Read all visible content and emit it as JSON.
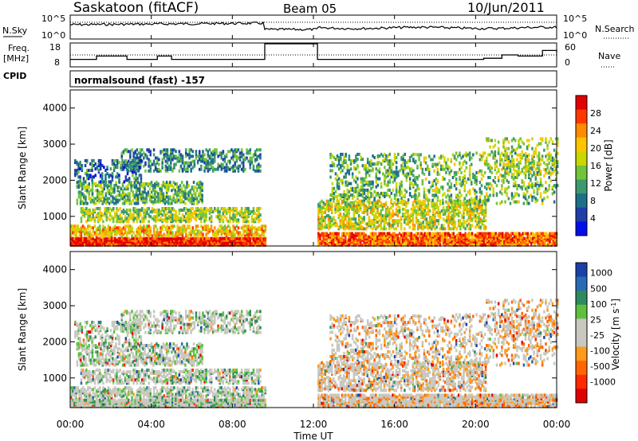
{
  "header": {
    "station": "Saskatoon (fitACF)",
    "beam": "Beam 05",
    "date": "10/Jun/2011"
  },
  "noise_panel": {
    "left_label": "N.Sky",
    "right_label": "N.Search",
    "left_ticks": [
      "10^5",
      "10^0"
    ],
    "right_ticks": [
      "10^5",
      "10^0"
    ]
  },
  "freq_panel": {
    "left_label_line1": "Freq.",
    "left_label_line2": "[MHz]",
    "right_label": "Nave",
    "left_ticks": [
      "18",
      "8"
    ],
    "right_ticks": [
      "60",
      "0"
    ]
  },
  "cpid_panel": {
    "label": "CPID",
    "text": "normalsound (fast) -157"
  },
  "power_panel": {
    "ylabel": "Slant Range [km]",
    "yticks": [
      "4000",
      "3000",
      "2000",
      "1000"
    ],
    "colorbar_title": "Power [dB]",
    "colorbar_ticks": [
      "28",
      "24",
      "20",
      "16",
      "12",
      "8",
      "4"
    ],
    "colorbar_colors": [
      "#e30000",
      "#ff3800",
      "#ff8c00",
      "#ffc400",
      "#c8d800",
      "#72c43a",
      "#3c9a6e",
      "#1f6e8a",
      "#1f3ea8",
      "#0010e8"
    ]
  },
  "velocity_panel": {
    "ylabel": "Slant Range [km]",
    "yticks": [
      "4000",
      "3000",
      "2000",
      "1000"
    ],
    "colorbar_title": "Velocity [m s",
    "colorbar_title_sup": "-1",
    "colorbar_title_end": "]",
    "colorbar_ticks": [
      "1000",
      "500",
      "100",
      "25",
      "-25",
      "-100",
      "-500",
      "-1000"
    ],
    "colorbar_colors": [
      "#1a3fa8",
      "#2a6ab5",
      "#2f8a5f",
      "#5fc040",
      "#c8c8c0",
      "#c8c8c0",
      "#ff9a1a",
      "#ff6600",
      "#ff2a00",
      "#e00000"
    ]
  },
  "x_axis": {
    "ticks": [
      "00:00",
      "04:00",
      "08:00",
      "12:00",
      "16:00",
      "20:00",
      "00:00"
    ],
    "label": "Time UT"
  },
  "chart_data": [
    {
      "type": "line",
      "title": "Saskatoon (fitACF)",
      "subtitle": "Beam 05 10/Jun/2011",
      "ylabel": "Freq. [MHz]",
      "xlabel": "Time UT",
      "x_range_hours": [
        0,
        24
      ],
      "ylim": [
        8,
        18
      ],
      "series": [
        {
          "name": "Freq.",
          "x": [
            0,
            1,
            1.3,
            2.8,
            3.3,
            4.3,
            5.0,
            9.6,
            12.2,
            15.6,
            20.4,
            20.8,
            21.3,
            22.1,
            23.3,
            24
          ],
          "y": [
            11,
            11,
            12.5,
            11,
            11,
            12.5,
            11,
            18,
            11,
            11,
            11.5,
            11.5,
            13,
            12.5,
            15,
            14
          ]
        }
      ]
    },
    {
      "type": "heatmap",
      "title": "Power [dB]",
      "ylabel": "Slant Range [km]",
      "xlabel": "Time UT",
      "x_range_hours": [
        0,
        24
      ],
      "ylim": [
        180,
        4500
      ],
      "zlim": [
        0,
        30
      ],
      "gap_hours": [
        9.6,
        12.2
      ]
    },
    {
      "type": "heatmap",
      "title": "Velocity [m s-1]",
      "ylabel": "Slant Range [km]",
      "xlabel": "Time UT",
      "x_range_hours": [
        0,
        24
      ],
      "ylim": [
        180,
        4500
      ],
      "zlim": [
        -1000,
        1000
      ],
      "gap_hours": [
        9.6,
        12.2
      ]
    }
  ]
}
